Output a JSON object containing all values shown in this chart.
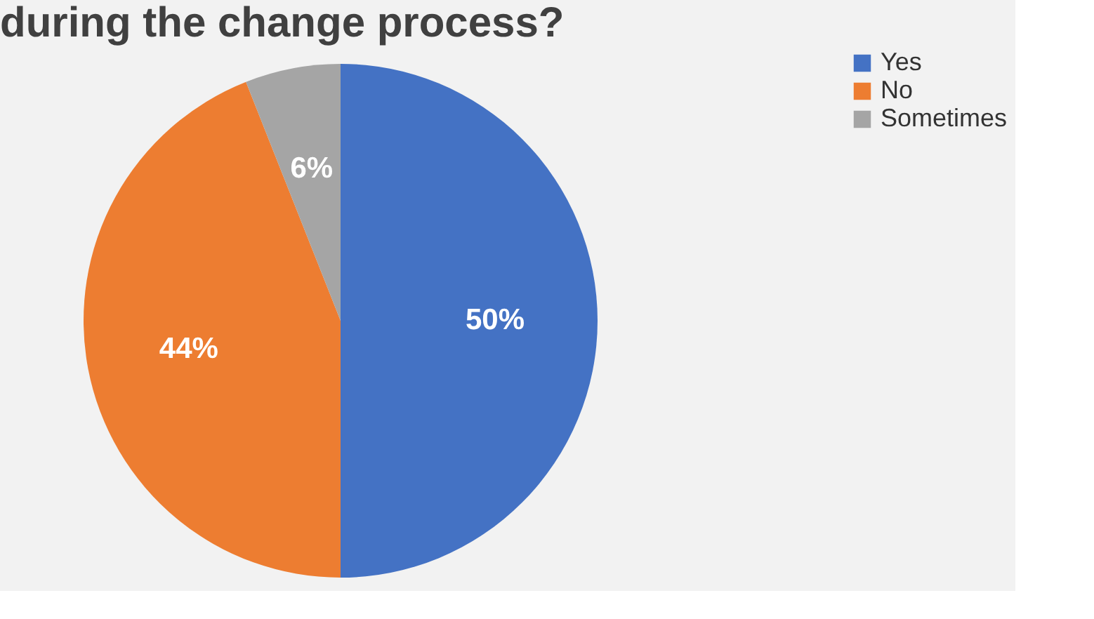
{
  "chart_data": {
    "type": "pie",
    "title": "during the change process?",
    "categories": [
      "Yes",
      "No",
      "Sometimes"
    ],
    "values": [
      50,
      44,
      6
    ],
    "colors": [
      "#4472c4",
      "#ed7d31",
      "#a5a5a5"
    ],
    "value_labels": [
      "50%",
      "44%",
      "6%"
    ],
    "legend": "right"
  }
}
